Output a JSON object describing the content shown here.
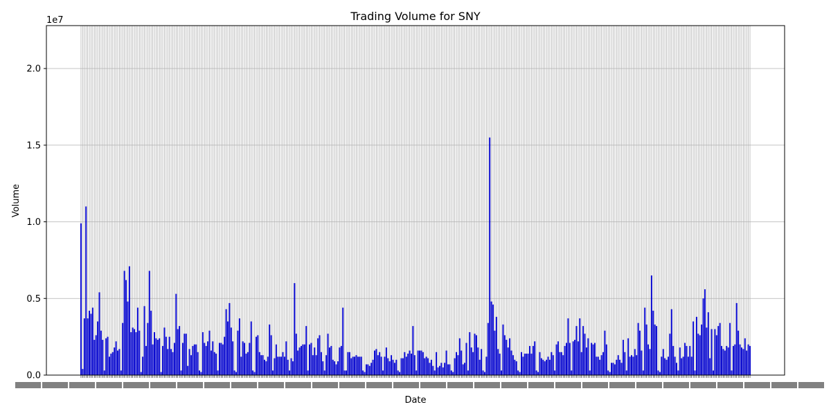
{
  "chart_data": {
    "type": "bar",
    "title": "Trading Volume for SNY",
    "xlabel": "Date",
    "ylabel": "Volume",
    "y_offset_label": "1e7",
    "ylim": [
      0,
      22800000
    ],
    "yticks": [
      0,
      5000000,
      10000000,
      15000000,
      20000000
    ],
    "ytick_labels": [
      "0.0",
      "0.5",
      "1.0",
      "1.5",
      "2.0"
    ],
    "grid": true,
    "legend": "none",
    "bar_color": "#0000cd",
    "grid_color": "#b0b0b0",
    "series": [
      {
        "values": [
          9900000,
          400000,
          3700000,
          11000000,
          3700000,
          4200000,
          4000000,
          4400000,
          2300000,
          2600000,
          3500000,
          5400000,
          2900000,
          2300000,
          300000,
          2400000,
          2500000,
          1200000,
          1400000,
          1500000,
          1800000,
          2200000,
          1600000,
          1700000,
          300000,
          3400000,
          6800000,
          6200000,
          4800000,
          7100000,
          2800000,
          3100000,
          3000000,
          2800000,
          4400000,
          2900000,
          200000,
          1200000,
          4500000,
          1900000,
          3400000,
          6800000,
          4200000,
          2000000,
          2800000,
          2400000,
          2300000,
          2400000,
          200000,
          1900000,
          3100000,
          2500000,
          1700000,
          2500000,
          1700000,
          1500000,
          2100000,
          5300000,
          3000000,
          3200000,
          300000,
          2100000,
          2700000,
          2700000,
          600000,
          1700000,
          1300000,
          1900000,
          2000000,
          2000000,
          1500000,
          300000,
          200000,
          2800000,
          2100000,
          1900000,
          2200000,
          2900000,
          1600000,
          2200000,
          1500000,
          1400000,
          300000,
          2100000,
          2100000,
          2000000,
          2500000,
          4300000,
          3500000,
          4700000,
          3100000,
          2200000,
          300000,
          200000,
          2900000,
          3700000,
          1200000,
          2200000,
          2100000,
          1400000,
          1500000,
          2100000,
          3500000,
          300000,
          200000,
          2500000,
          2600000,
          1500000,
          1300000,
          1300000,
          1000000,
          900000,
          1200000,
          3300000,
          2600000,
          300000,
          1100000,
          2000000,
          1200000,
          1200000,
          1200000,
          1500000,
          1200000,
          2200000,
          1000000,
          300000,
          1100000,
          900000,
          6000000,
          2700000,
          1600000,
          1800000,
          1900000,
          2000000,
          2000000,
          3200000,
          300000,
          2000000,
          2100000,
          1300000,
          1800000,
          1300000,
          2400000,
          2600000,
          1500000,
          900000,
          300000,
          1300000,
          2700000,
          1800000,
          1900000,
          1000000,
          900000,
          700000,
          900000,
          1800000,
          1900000,
          4400000,
          300000,
          300000,
          1500000,
          1500000,
          1100000,
          1200000,
          1200000,
          1300000,
          1200000,
          1200000,
          1200000,
          300000,
          200000,
          700000,
          700000,
          600000,
          800000,
          1000000,
          1600000,
          1700000,
          1300000,
          1500000,
          1200000,
          300000,
          1200000,
          1800000,
          1100000,
          900000,
          1300000,
          1000000,
          800000,
          1000000,
          300000,
          200000,
          1100000,
          1100000,
          1500000,
          1200000,
          1400000,
          1600000,
          1400000,
          3200000,
          1300000,
          300000,
          1600000,
          1600000,
          1600000,
          1500000,
          1100000,
          1200000,
          1100000,
          800000,
          1000000,
          600000,
          300000,
          1500000,
          500000,
          600000,
          800000,
          500000,
          800000,
          1600000,
          700000,
          700000,
          300000,
          200000,
          1100000,
          1500000,
          1300000,
          2400000,
          1600000,
          700000,
          800000,
          2100000,
          300000,
          2800000,
          1800000,
          1500000,
          2700000,
          2600000,
          1800000,
          1000000,
          1700000,
          300000,
          200000,
          1200000,
          3400000,
          15500000,
          4800000,
          4600000,
          2900000,
          3800000,
          1700000,
          1400000,
          300000,
          3300000,
          2600000,
          2300000,
          1800000,
          2400000,
          1600000,
          1300000,
          1000000,
          900000,
          300000,
          200000,
          1500000,
          1200000,
          1400000,
          1400000,
          1400000,
          1900000,
          1400000,
          1900000,
          2200000,
          300000,
          200000,
          1500000,
          1100000,
          1000000,
          900000,
          1000000,
          1200000,
          1000000,
          1500000,
          1300000,
          300000,
          2000000,
          2200000,
          1500000,
          1500000,
          1300000,
          1900000,
          2100000,
          3700000,
          2100000,
          300000,
          2200000,
          2300000,
          3200000,
          2200000,
          3700000,
          1500000,
          3200000,
          2700000,
          1800000,
          2400000,
          300000,
          2100000,
          2000000,
          2100000,
          1200000,
          1200000,
          1000000,
          1300000,
          1500000,
          2900000,
          2000000,
          300000,
          200000,
          800000,
          800000,
          700000,
          1000000,
          1300000,
          1000000,
          800000,
          2300000,
          1500000,
          300000,
          2400000,
          1200000,
          1300000,
          1200000,
          1700000,
          1300000,
          3400000,
          2900000,
          1600000,
          300000,
          4400000,
          3300000,
          2000000,
          1700000,
          6500000,
          4200000,
          3300000,
          3200000,
          300000,
          200000,
          1200000,
          1700000,
          1100000,
          1000000,
          1200000,
          2700000,
          4300000,
          1900000,
          1200000,
          800000,
          300000,
          1800000,
          1100000,
          1200000,
          2100000,
          1900000,
          1200000,
          1900000,
          1200000,
          3500000,
          300000,
          3800000,
          2700000,
          2600000,
          3300000,
          5000000,
          5600000,
          3100000,
          4100000,
          1100000,
          3000000,
          300000,
          3000000,
          2600000,
          3200000,
          3400000,
          1900000,
          1700000,
          1600000,
          1900000,
          1800000,
          3400000,
          300000,
          1900000,
          2000000,
          4700000,
          2900000,
          2000000,
          1800000,
          1700000,
          2400000,
          1600000,
          2000000,
          1900000
        ]
      }
    ]
  }
}
